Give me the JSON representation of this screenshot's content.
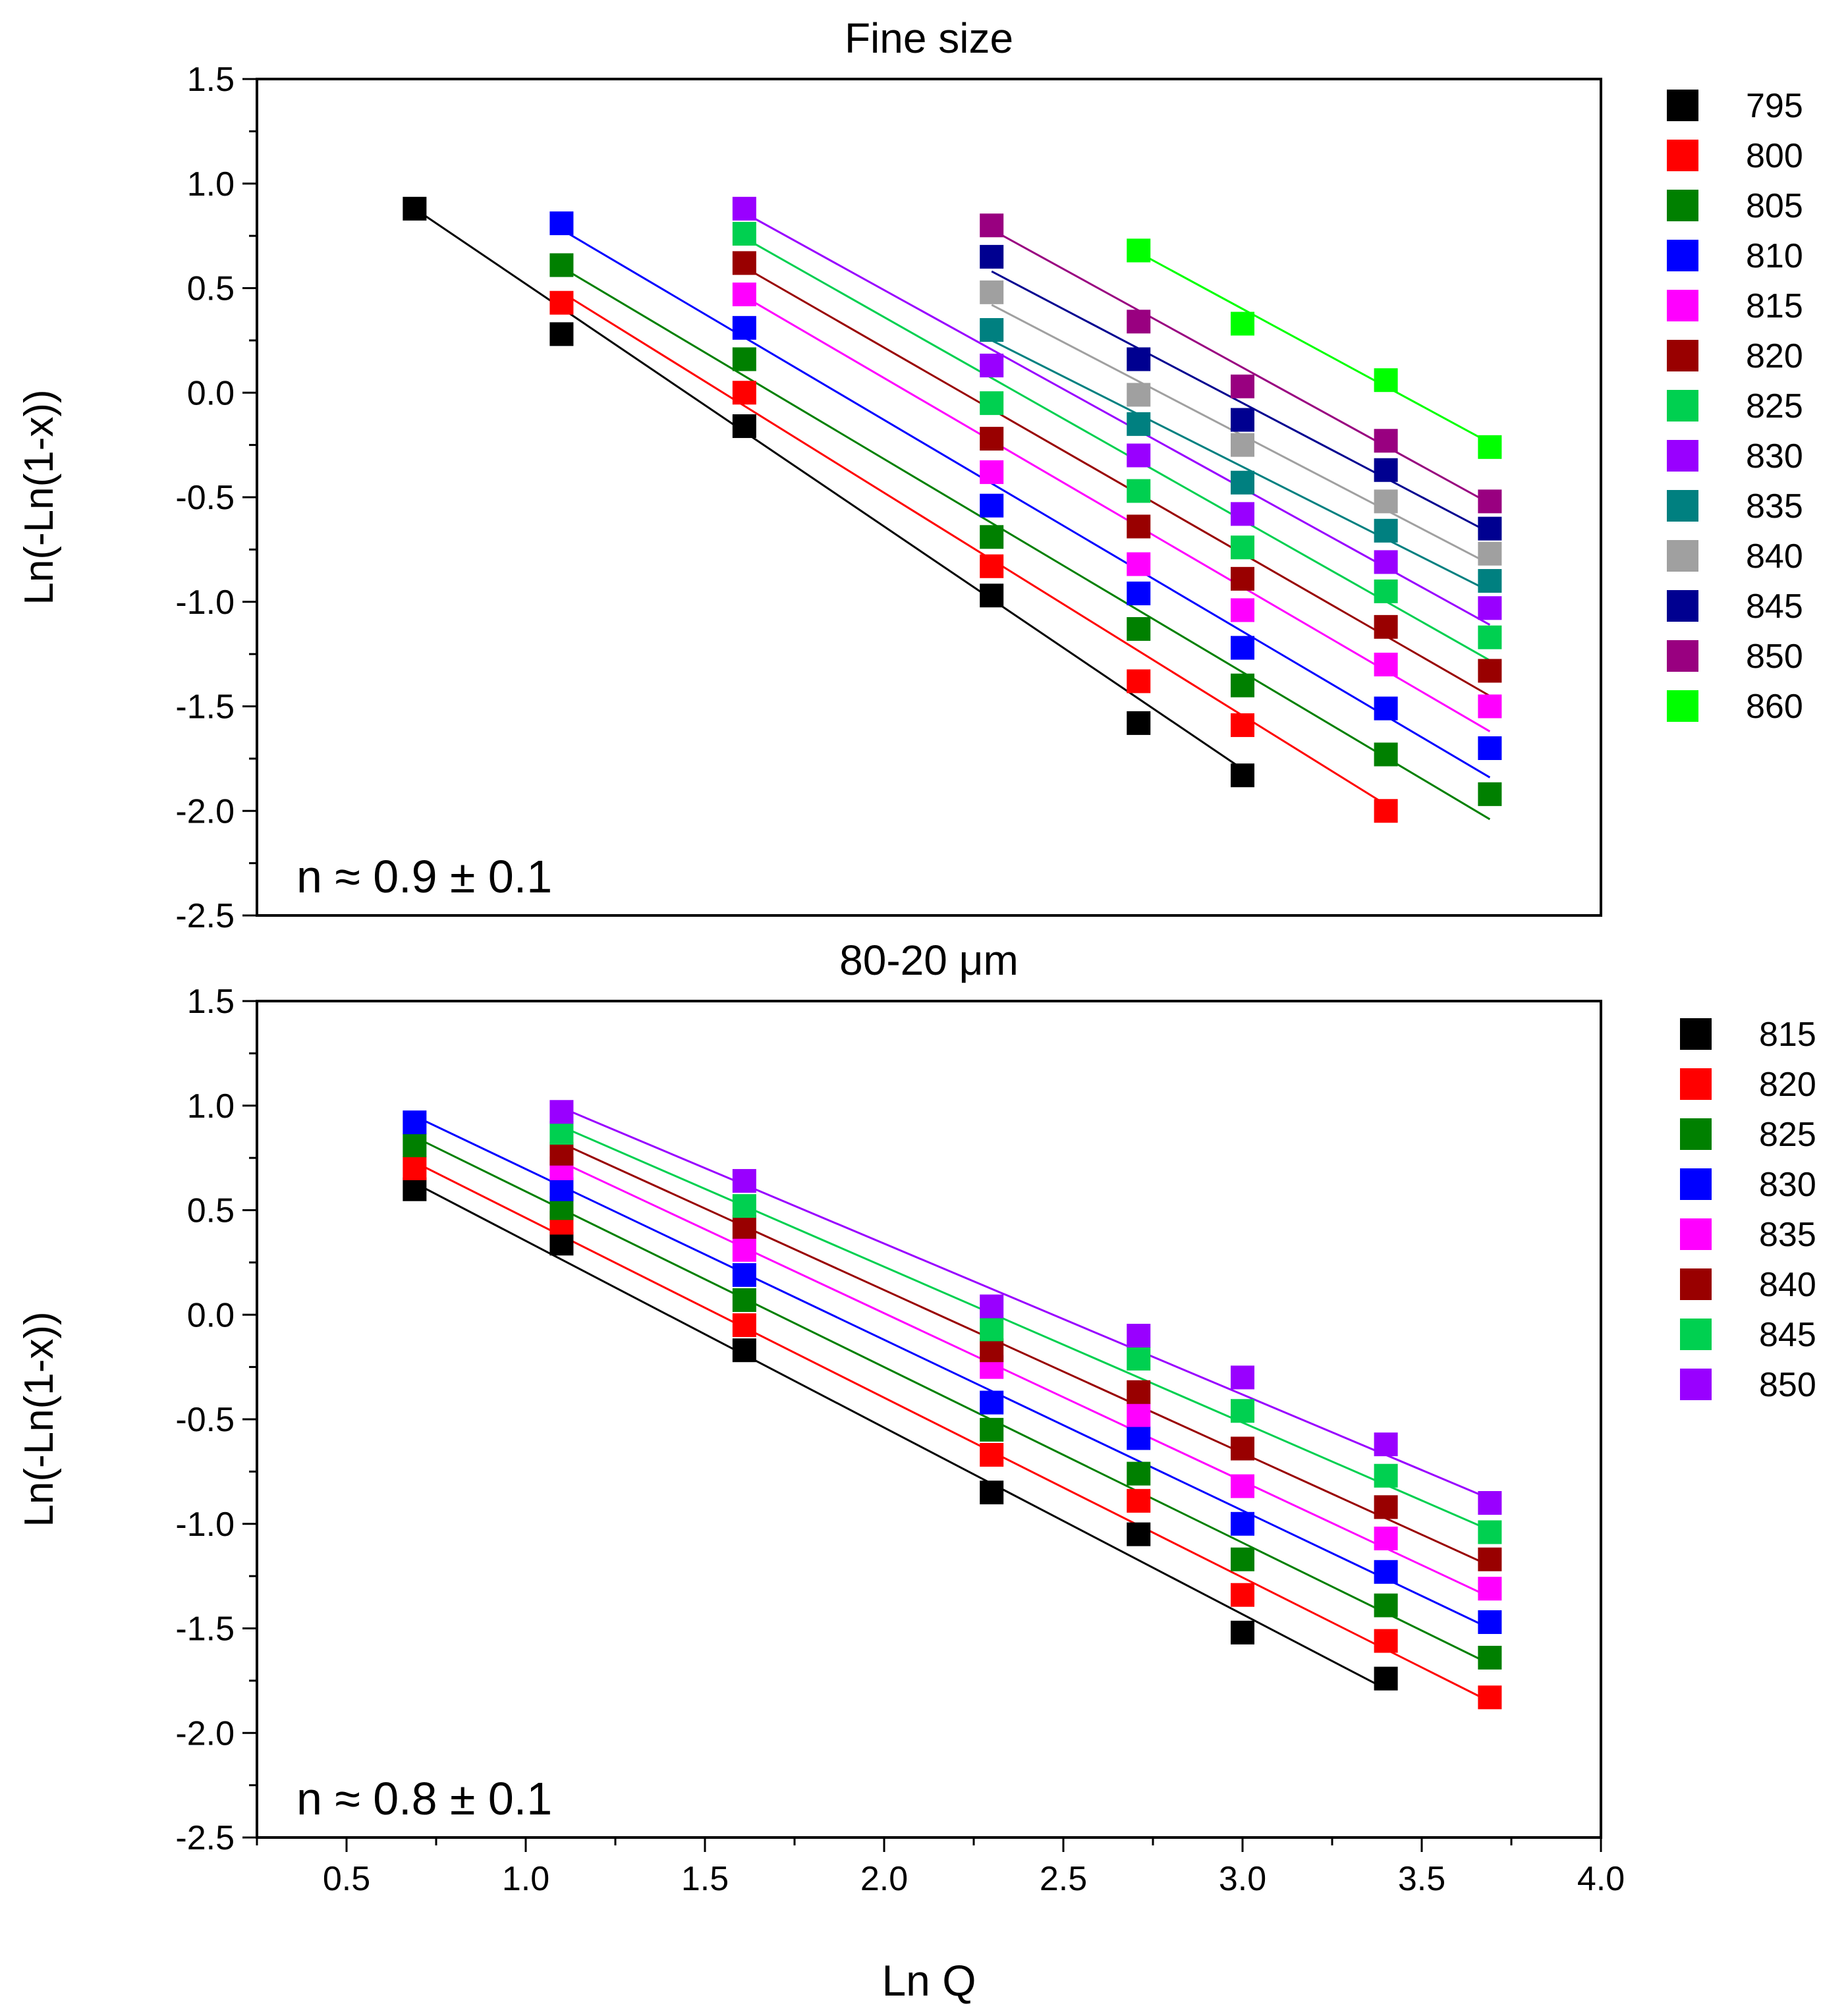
{
  "chart_data": [
    {
      "type": "scatter",
      "title": "Fine size",
      "xlabel": "",
      "ylabel": "Ln(-Ln(1-x))",
      "xlim": [
        0.25,
        4.0
      ],
      "ylim": [
        -2.5,
        1.5
      ],
      "yticks": [
        "1.5",
        "1.0",
        "0.5",
        "0.0",
        "-0.5",
        "-1.0",
        "-1.5",
        "-2.0",
        "-2.5"
      ],
      "annotation": "n ≈ 0.9 ± 0.1",
      "legend_position": "right",
      "series": [
        {
          "name": "795",
          "color": "#000000",
          "x": [
            0.69,
            1.1,
            1.61,
            2.3,
            2.71,
            3.0
          ],
          "y": [
            0.88,
            0.28,
            -0.16,
            -0.97,
            -1.58,
            -1.83
          ],
          "fit": [
            [
              0.69,
              0.88
            ],
            [
              3.0,
              -1.8
            ]
          ]
        },
        {
          "name": "800",
          "color": "#ff0000",
          "x": [
            1.1,
            1.61,
            2.3,
            2.71,
            3.0,
            3.4
          ],
          "y": [
            0.43,
            0.0,
            -0.83,
            -1.38,
            -1.59,
            -2.0
          ],
          "fit": [
            [
              1.1,
              0.48
            ],
            [
              3.4,
              -1.97
            ]
          ]
        },
        {
          "name": "805",
          "color": "#008000",
          "x": [
            1.1,
            1.61,
            2.3,
            2.71,
            3.0,
            3.4,
            3.69
          ],
          "y": [
            0.61,
            0.16,
            -0.69,
            -1.13,
            -1.4,
            -1.73,
            -1.92
          ],
          "fit": [
            [
              1.1,
              0.6
            ],
            [
              3.69,
              -2.04
            ]
          ]
        },
        {
          "name": "810",
          "color": "#0000ff",
          "x": [
            1.1,
            1.61,
            2.3,
            2.71,
            3.0,
            3.4,
            3.69
          ],
          "y": [
            0.81,
            0.31,
            -0.54,
            -0.96,
            -1.22,
            -1.51,
            -1.7
          ],
          "fit": [
            [
              1.1,
              0.78
            ],
            [
              3.69,
              -1.84
            ]
          ]
        },
        {
          "name": "815",
          "color": "#ff00ff",
          "x": [
            1.61,
            2.3,
            2.71,
            3.0,
            3.4,
            3.69
          ],
          "y": [
            0.47,
            -0.38,
            -0.82,
            -1.04,
            -1.3,
            -1.5
          ],
          "fit": [
            [
              1.61,
              0.46
            ],
            [
              3.69,
              -1.62
            ]
          ]
        },
        {
          "name": "820",
          "color": "#990000",
          "x": [
            1.61,
            2.3,
            2.71,
            3.0,
            3.4,
            3.69
          ],
          "y": [
            0.62,
            -0.22,
            -0.64,
            -0.89,
            -1.12,
            -1.33
          ],
          "fit": [
            [
              1.61,
              0.6
            ],
            [
              3.69,
              -1.45
            ]
          ]
        },
        {
          "name": "825",
          "color": "#00d050",
          "x": [
            1.61,
            2.3,
            2.71,
            3.0,
            3.4,
            3.69
          ],
          "y": [
            0.76,
            -0.05,
            -0.47,
            -0.74,
            -0.95,
            -1.17
          ],
          "fit": [
            [
              1.61,
              0.74
            ],
            [
              3.69,
              -1.28
            ]
          ]
        },
        {
          "name": "830",
          "color": "#9900ff",
          "x": [
            1.61,
            2.3,
            2.71,
            3.0,
            3.4,
            3.69
          ],
          "y": [
            0.88,
            0.13,
            -0.3,
            -0.58,
            -0.81,
            -1.03
          ],
          "fit": [
            [
              1.61,
              0.86
            ],
            [
              3.69,
              -1.11
            ]
          ]
        },
        {
          "name": "835",
          "color": "#008080",
          "x": [
            2.3,
            2.71,
            3.0,
            3.4,
            3.69
          ],
          "y": [
            0.3,
            -0.15,
            -0.43,
            -0.66,
            -0.9
          ],
          "fit": [
            [
              2.3,
              0.25
            ],
            [
              3.69,
              -0.95
            ]
          ]
        },
        {
          "name": "840",
          "color": "#a0a0a0",
          "x": [
            2.3,
            2.71,
            3.0,
            3.4,
            3.69
          ],
          "y": [
            0.48,
            -0.01,
            -0.25,
            -0.52,
            -0.77
          ],
          "fit": [
            [
              2.3,
              0.42
            ],
            [
              3.69,
              -0.82
            ]
          ]
        },
        {
          "name": "845",
          "color": "#000090",
          "x": [
            2.3,
            2.71,
            3.0,
            3.4,
            3.69
          ],
          "y": [
            0.65,
            0.16,
            -0.13,
            -0.37,
            -0.65
          ],
          "fit": [
            [
              2.3,
              0.58
            ],
            [
              3.69,
              -0.67
            ]
          ]
        },
        {
          "name": "850",
          "color": "#990080",
          "x": [
            2.3,
            2.71,
            3.0,
            3.4,
            3.69
          ],
          "y": [
            0.8,
            0.34,
            0.03,
            -0.23,
            -0.52
          ],
          "fit": [
            [
              2.3,
              0.78
            ],
            [
              3.69,
              -0.53
            ]
          ]
        },
        {
          "name": "860",
          "color": "#00ff00",
          "x": [
            2.71,
            3.0,
            3.4,
            3.69
          ],
          "y": [
            0.68,
            0.33,
            0.06,
            -0.26
          ],
          "fit": [
            [
              2.71,
              0.67
            ],
            [
              3.69,
              -0.24
            ]
          ]
        }
      ]
    },
    {
      "type": "scatter",
      "title": "80-20 μm",
      "xlabel": "Ln Q",
      "ylabel": "Ln(-Ln(1-x))",
      "xlim": [
        0.25,
        4.0
      ],
      "ylim": [
        -2.5,
        1.5
      ],
      "xticks": [
        "0.5",
        "1.0",
        "1.5",
        "2.0",
        "2.5",
        "3.0",
        "3.5",
        "4.0"
      ],
      "yticks": [
        "1.5",
        "1.0",
        "0.5",
        "0.0",
        "-0.5",
        "-1.0",
        "-1.5",
        "-2.0",
        "-2.5"
      ],
      "annotation": "n ≈ 0.8 ± 0.1",
      "legend_position": "right",
      "series": [
        {
          "name": "815",
          "color": "#000000",
          "x": [
            0.69,
            1.1,
            1.61,
            2.3,
            2.71,
            3.0,
            3.4
          ],
          "y": [
            0.6,
            0.34,
            -0.17,
            -0.85,
            -1.05,
            -1.52,
            -1.74
          ],
          "fit": [
            [
              0.69,
              0.63
            ],
            [
              3.4,
              -1.79
            ]
          ]
        },
        {
          "name": "820",
          "color": "#ff0000",
          "x": [
            0.69,
            1.1,
            1.61,
            2.3,
            2.71,
            3.0,
            3.4,
            3.69
          ],
          "y": [
            0.7,
            0.44,
            -0.05,
            -0.67,
            -0.89,
            -1.34,
            -1.56,
            -1.83
          ],
          "fit": [
            [
              0.69,
              0.73
            ],
            [
              3.69,
              -1.85
            ]
          ]
        },
        {
          "name": "825",
          "color": "#008000",
          "x": [
            0.69,
            1.1,
            1.61,
            2.3,
            2.71,
            3.0,
            3.4,
            3.69
          ],
          "y": [
            0.81,
            0.51,
            0.07,
            -0.55,
            -0.76,
            -1.17,
            -1.39,
            -1.64
          ],
          "fit": [
            [
              0.69,
              0.85
            ],
            [
              3.69,
              -1.67
            ]
          ]
        },
        {
          "name": "830",
          "color": "#0000ff",
          "x": [
            0.69,
            1.1,
            1.61,
            2.3,
            2.71,
            3.0,
            3.4,
            3.69
          ],
          "y": [
            0.92,
            0.6,
            0.19,
            -0.42,
            -0.59,
            -1.0,
            -1.23,
            -1.47
          ],
          "fit": [
            [
              0.69,
              0.95
            ],
            [
              3.69,
              -1.5
            ]
          ]
        },
        {
          "name": "835",
          "color": "#ff00ff",
          "x": [
            1.1,
            1.61,
            2.3,
            2.71,
            3.0,
            3.4,
            3.69
          ],
          "y": [
            0.7,
            0.31,
            -0.25,
            -0.48,
            -0.82,
            -1.07,
            -1.31
          ],
          "fit": [
            [
              1.1,
              0.73
            ],
            [
              3.69,
              -1.35
            ]
          ]
        },
        {
          "name": "840",
          "color": "#990000",
          "x": [
            1.1,
            1.61,
            2.3,
            2.71,
            3.0,
            3.4,
            3.69
          ],
          "y": [
            0.77,
            0.42,
            -0.17,
            -0.37,
            -0.64,
            -0.92,
            -1.17
          ],
          "fit": [
            [
              1.1,
              0.82
            ],
            [
              3.69,
              -1.2
            ]
          ]
        },
        {
          "name": "845",
          "color": "#00d050",
          "x": [
            1.1,
            1.61,
            2.3,
            2.71,
            3.0,
            3.4,
            3.69
          ],
          "y": [
            0.87,
            0.52,
            -0.07,
            -0.21,
            -0.46,
            -0.77,
            -1.04
          ],
          "fit": [
            [
              1.1,
              0.9
            ],
            [
              3.69,
              -1.03
            ]
          ]
        },
        {
          "name": "850",
          "color": "#9900ff",
          "x": [
            1.1,
            1.61,
            2.3,
            2.71,
            3.0,
            3.4,
            3.69
          ],
          "y": [
            0.97,
            0.64,
            0.04,
            -0.1,
            -0.3,
            -0.62,
            -0.9
          ],
          "fit": [
            [
              1.1,
              0.99
            ],
            [
              3.69,
              -0.88
            ]
          ]
        }
      ]
    }
  ]
}
